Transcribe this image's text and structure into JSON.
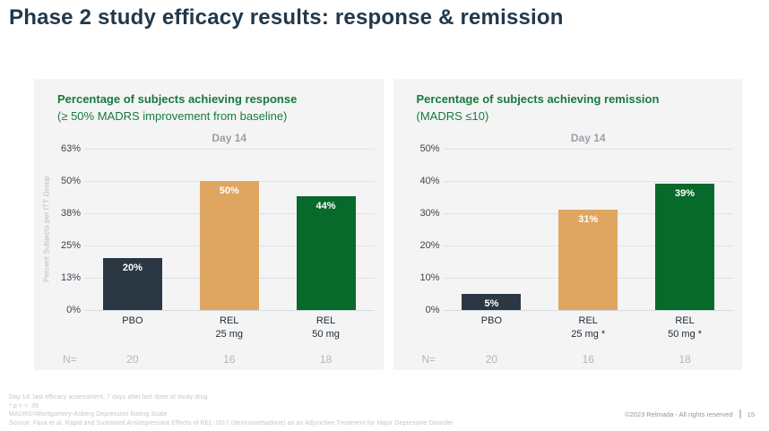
{
  "slide": {
    "title": "Phase 2 study efficacy results: response & remission",
    "footnotes": [
      "Day 14: last efficacy assessment, 7 days after last dose of study drug",
      "* p = < .05",
      "MADRS=Montgomery-Asberg Depression Rating Scale",
      "Source:  Fava et al. Rapid and Sustained Antidepressant Effects of REL-1017 (dextromethadone) as an Adjunctive Treatment for Major Depressive Disorder"
    ],
    "copyright": "©2023 Relmada - All rights reserved",
    "page_number": "15"
  },
  "colors": {
    "slide_title": "#22384a",
    "chart_title_green": "#177a3d",
    "panel_background": "#f4f4f5",
    "bar_dark": "#2b3844",
    "bar_tan": "#dfa661",
    "bar_green": "#07692a",
    "gridline": "#dde3e8",
    "muted_gray": "#b1b8be"
  },
  "chart_data": [
    {
      "type": "bar",
      "title": "Percentage of subjects achieving response",
      "subtitle": "(≥ 50% MADRS improvement from baseline)",
      "period_label": "Day 14",
      "xlabel": "",
      "ylabel": "Percent Subjects per ITT Group",
      "ylim": [
        0,
        62.5
      ],
      "grid": true,
      "legend": "none",
      "yticks": [
        {
          "value": 62.5,
          "label": "63%"
        },
        {
          "value": 50,
          "label": "50%"
        },
        {
          "value": 37.5,
          "label": "38%"
        },
        {
          "value": 25,
          "label": "25%"
        },
        {
          "value": 12.5,
          "label": "13%"
        },
        {
          "value": 0,
          "label": "0%"
        }
      ],
      "n_row_label": "N=",
      "bars": [
        {
          "category_lines": [
            "PBO"
          ],
          "value": 20,
          "value_label": "20%",
          "color": "#2b3844",
          "n": "20"
        },
        {
          "category_lines": [
            "REL",
            "25 mg"
          ],
          "value": 50,
          "value_label": "50%",
          "color": "#dfa661",
          "n": "16"
        },
        {
          "category_lines": [
            "REL",
            "50 mg"
          ],
          "value": 44,
          "value_label": "44%",
          "color": "#07692a",
          "n": "18"
        }
      ]
    },
    {
      "type": "bar",
      "title": "Percentage of subjects achieving remission",
      "subtitle": "(MADRS ≤10)",
      "period_label": "Day 14",
      "xlabel": "",
      "ylabel": "",
      "ylim": [
        0,
        50
      ],
      "grid": true,
      "legend": "none",
      "yticks": [
        {
          "value": 50,
          "label": "50%"
        },
        {
          "value": 40,
          "label": "40%"
        },
        {
          "value": 30,
          "label": "30%"
        },
        {
          "value": 20,
          "label": "20%"
        },
        {
          "value": 10,
          "label": "10%"
        },
        {
          "value": 0,
          "label": "0%"
        }
      ],
      "n_row_label": "N=",
      "bars": [
        {
          "category_lines": [
            "PBO"
          ],
          "value": 5,
          "value_label": "5%",
          "color": "#2b3844",
          "n": "20"
        },
        {
          "category_lines": [
            "REL",
            "25 mg *"
          ],
          "value": 31,
          "value_label": "31%",
          "color": "#dfa661",
          "n": "16"
        },
        {
          "category_lines": [
            "REL",
            "50 mg *"
          ],
          "value": 39,
          "value_label": "39%",
          "color": "#07692a",
          "n": "18"
        }
      ]
    }
  ]
}
